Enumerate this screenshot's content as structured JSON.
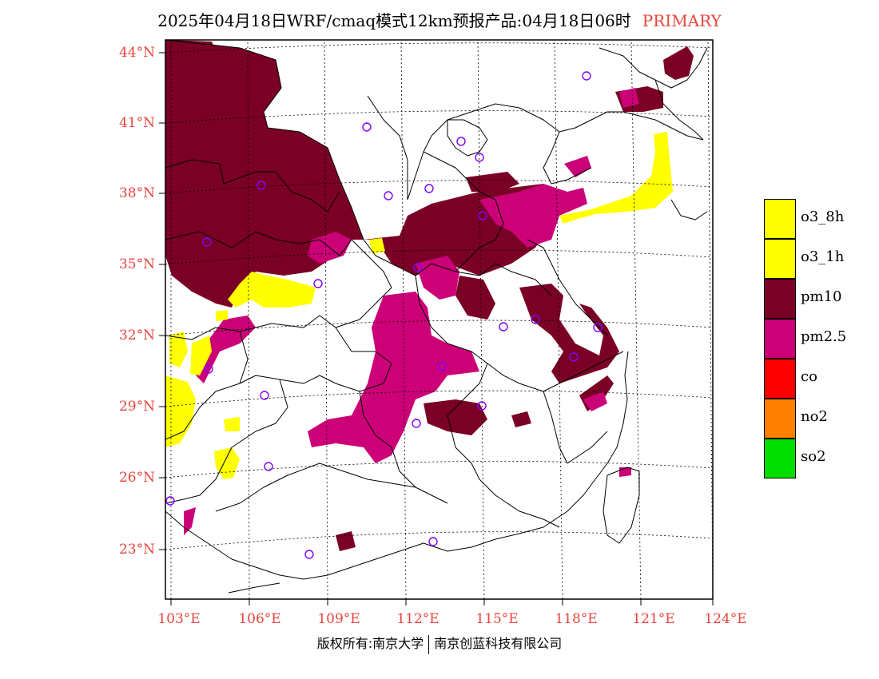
{
  "title": {
    "main": "2025年04月18日WRF/cmaq模式12km预报产品:04月18日06时",
    "tag": "PRIMARY"
  },
  "credit": {
    "left": "版权所有:南京大学",
    "right": "南京创蓝科技有限公司"
  },
  "axes": {
    "lat_labels": [
      "44°N",
      "41°N",
      "38°N",
      "35°N",
      "32°N",
      "29°N",
      "26°N",
      "23°N"
    ],
    "lon_labels": [
      "103°E",
      "106°E",
      "109°E",
      "112°E",
      "115°E",
      "118°E",
      "121°E",
      "124°E"
    ]
  },
  "legend": [
    {
      "label": "o3_8h",
      "color": "#ffff00"
    },
    {
      "label": "o3_1h",
      "color": "#ffff00"
    },
    {
      "label": "pm10",
      "color": "#7a0026"
    },
    {
      "label": "pm2.5",
      "color": "#cc0077"
    },
    {
      "label": "co",
      "color": "#ff0000"
    },
    {
      "label": "no2",
      "color": "#ff8000"
    },
    {
      "label": "so2",
      "color": "#00dd00"
    }
  ],
  "colors": {
    "label_red": "#e8453c",
    "pm10": "#7a0026",
    "pm25": "#cc0077",
    "o3": "#ffff00",
    "station": "#8000ff"
  }
}
